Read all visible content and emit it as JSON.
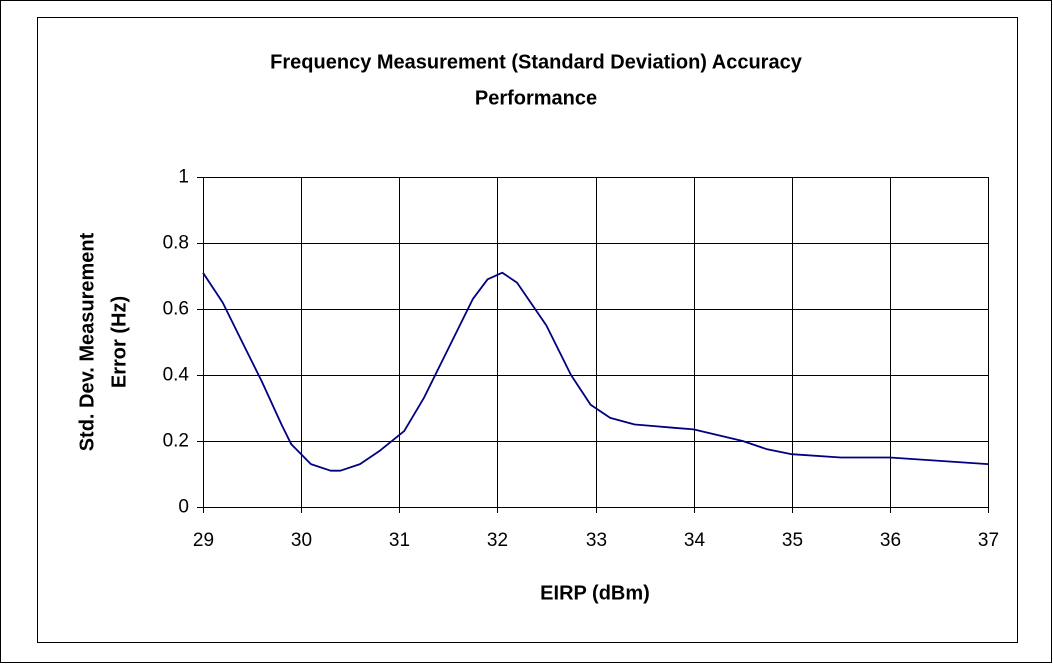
{
  "chart_data": {
    "type": "line",
    "title": [
      "Frequency Measurement (Standard Deviation) Accuracy",
      "Performance"
    ],
    "x_label": "EIRP (dBm)",
    "y_label": [
      "Std. Dev. Measurement",
      "Error (Hz)"
    ],
    "series": [
      {
        "name": "Std. Dev. Measurement Error",
        "color": "#000080",
        "x": [
          29,
          29.2,
          29.4,
          29.6,
          29.8,
          29.9,
          30.1,
          30.3,
          30.4,
          30.6,
          30.8,
          31.05,
          31.25,
          31.5,
          31.75,
          31.9,
          32.05,
          32.2,
          32.5,
          32.75,
          32.95,
          33.15,
          33.4,
          33.6,
          33.8,
          34,
          34.5,
          34.75,
          35,
          35.5,
          36,
          37
        ],
        "values": [
          0.71,
          0.62,
          0.5,
          0.38,
          0.25,
          0.19,
          0.13,
          0.11,
          0.11,
          0.13,
          0.17,
          0.23,
          0.33,
          0.48,
          0.63,
          0.69,
          0.71,
          0.68,
          0.55,
          0.4,
          0.31,
          0.27,
          0.25,
          0.245,
          0.24,
          0.235,
          0.2,
          0.175,
          0.16,
          0.15,
          0.15,
          0.13
        ]
      }
    ],
    "xlim": [
      29,
      37
    ],
    "xticks": [
      29,
      30,
      31,
      32,
      33,
      34,
      35,
      36,
      37
    ],
    "ylim": [
      0,
      1
    ],
    "yticks": [
      0,
      0.2,
      0.4,
      0.6,
      0.8,
      1
    ],
    "grid": true
  }
}
